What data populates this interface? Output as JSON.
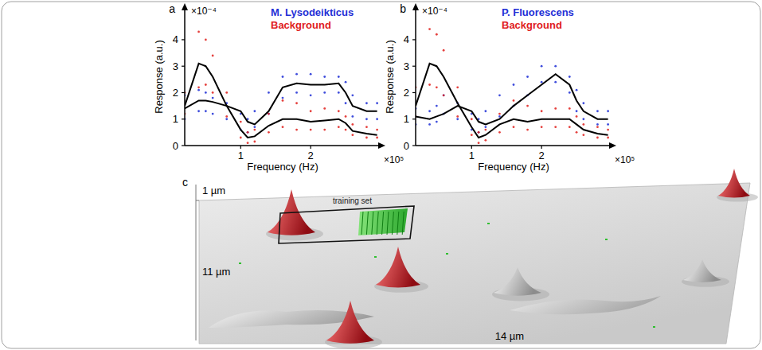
{
  "chart_data": [
    {
      "type": "scatter",
      "panel": "a",
      "x_label": "Frequency (Hz)",
      "y_label": "Response (a.u.)",
      "x_axis_factor": "×10⁵",
      "y_axis_factor": "×10⁻⁴",
      "xlim": [
        0.2,
        3.0
      ],
      "ylim": [
        0,
        5.2
      ],
      "xticks": [
        1,
        2
      ],
      "yticks": [
        0,
        1,
        2,
        3,
        4
      ],
      "grid": false,
      "legend": "upper right",
      "series": [
        {
          "name": "M. Lysodeikticus",
          "type": "scatter",
          "marker": "circle",
          "color": "#1f2fd6",
          "x": [
            0.2,
            0.4,
            0.5,
            0.6,
            0.8,
            1.0,
            1.1,
            1.2,
            1.4,
            1.6,
            1.8,
            2.0,
            2.2,
            2.4,
            2.5,
            2.6,
            2.8,
            2.95,
            0.2,
            0.4,
            0.5,
            0.6,
            0.8,
            1.0,
            1.1,
            1.2,
            1.4,
            1.6,
            1.8,
            2.0,
            2.2,
            2.4,
            2.5,
            2.6,
            2.8,
            2.95
          ],
          "values": [
            1.9,
            2.1,
            2.0,
            1.8,
            1.6,
            1.2,
            1.0,
            1.3,
            2.0,
            2.6,
            2.7,
            2.7,
            2.6,
            2.6,
            2.4,
            1.9,
            1.6,
            1.6,
            1.0,
            1.3,
            1.3,
            1.2,
            1.0,
            0.6,
            0.5,
            0.7,
            1.2,
            1.8,
            2.0,
            1.9,
            2.0,
            2.0,
            1.6,
            1.1,
            1.0,
            1.0
          ]
        },
        {
          "name": "Background",
          "type": "scatter",
          "marker": "circle",
          "color": "#e0201c",
          "x": [
            0.2,
            0.4,
            0.5,
            0.6,
            0.8,
            1.0,
            1.1,
            1.2,
            1.4,
            1.6,
            1.8,
            2.0,
            2.2,
            2.4,
            2.5,
            2.6,
            2.8,
            2.95,
            0.2,
            0.4,
            0.5,
            0.6,
            0.8,
            1.0,
            1.1,
            1.2,
            1.4,
            1.6,
            1.8,
            2.0,
            2.2,
            2.4,
            2.5,
            2.6,
            2.8,
            2.95
          ],
          "values": [
            2.0,
            4.3,
            4.0,
            3.4,
            2.0,
            0.9,
            0.5,
            0.6,
            1.2,
            1.7,
            1.6,
            1.3,
            1.4,
            1.3,
            1.1,
            0.8,
            0.7,
            0.6,
            1.2,
            2.2,
            2.3,
            2.0,
            1.1,
            0.3,
            0.1,
            0.15,
            0.5,
            0.7,
            0.6,
            0.6,
            0.6,
            0.7,
            0.6,
            0.4,
            0.3,
            0.3
          ]
        },
        {
          "type": "line",
          "line_style": "solid",
          "color": "#000000",
          "x": [
            0.2,
            0.4,
            0.5,
            0.6,
            0.8,
            1.0,
            1.1,
            1.2,
            1.4,
            1.6,
            1.8,
            2.0,
            2.2,
            2.4,
            2.5,
            2.6,
            2.8,
            2.95
          ],
          "values": [
            1.4,
            1.7,
            1.7,
            1.65,
            1.5,
            1.3,
            0.9,
            0.8,
            1.3,
            2.2,
            2.35,
            2.3,
            2.3,
            2.35,
            2.0,
            1.5,
            1.3,
            1.3
          ]
        },
        {
          "type": "line",
          "line_style": "solid",
          "color": "#000000",
          "x": [
            0.2,
            0.4,
            0.5,
            0.6,
            0.8,
            1.0,
            1.1,
            1.2,
            1.4,
            1.6,
            1.8,
            2.0,
            2.2,
            2.4,
            2.5,
            2.6,
            2.8,
            2.95
          ],
          "values": [
            1.5,
            3.1,
            3.0,
            2.6,
            1.5,
            0.6,
            0.3,
            0.35,
            0.75,
            1.0,
            1.0,
            0.9,
            0.95,
            1.0,
            0.85,
            0.55,
            0.45,
            0.4
          ]
        }
      ]
    },
    {
      "type": "scatter",
      "panel": "b",
      "x_label": "Frequency (Hz)",
      "y_label": "Response (a.u.)",
      "x_axis_factor": "×10⁵",
      "y_axis_factor": "×10⁻⁴",
      "xlim": [
        0.2,
        3.0
      ],
      "ylim": [
        0,
        5.2
      ],
      "xticks": [
        1,
        2
      ],
      "yticks": [
        0,
        1,
        2,
        3,
        4
      ],
      "grid": false,
      "legend": "upper right",
      "series": [
        {
          "name": "P. Fluorescens",
          "type": "scatter",
          "marker": "circle",
          "color": "#1f2fd6",
          "x": [
            0.2,
            0.4,
            0.5,
            0.6,
            0.8,
            1.0,
            1.1,
            1.2,
            1.4,
            1.6,
            1.8,
            2.0,
            2.2,
            2.4,
            2.5,
            2.6,
            2.8,
            2.95,
            0.2,
            0.4,
            0.5,
            0.6,
            0.8,
            1.0,
            1.1,
            1.2,
            1.4,
            1.6,
            1.8,
            2.0,
            2.2,
            2.4,
            2.5,
            2.6,
            2.8,
            2.95
          ],
          "values": [
            1.4,
            1.3,
            1.5,
            1.9,
            1.6,
            1.2,
            1.0,
            1.3,
            1.9,
            2.3,
            2.6,
            3.0,
            3.0,
            2.6,
            2.1,
            1.6,
            1.3,
            1.3,
            0.8,
            0.8,
            0.9,
            1.2,
            1.0,
            0.6,
            0.5,
            0.7,
            1.1,
            1.5,
            1.9,
            2.4,
            2.4,
            2.0,
            1.3,
            1.0,
            0.8,
            0.8
          ]
        },
        {
          "name": "Background",
          "type": "scatter",
          "marker": "circle",
          "color": "#e0201c",
          "x": [
            0.2,
            0.4,
            0.5,
            0.6,
            0.8,
            1.0,
            1.1,
            1.2,
            1.4,
            1.6,
            1.8,
            2.0,
            2.2,
            2.4,
            2.5,
            2.6,
            2.8,
            2.95,
            0.2,
            0.4,
            0.5,
            0.6,
            0.8,
            1.0,
            1.1,
            1.2,
            1.4,
            1.6,
            1.8,
            2.0,
            2.2,
            2.4,
            2.5,
            2.6,
            2.8,
            2.95
          ],
          "values": [
            2.2,
            4.4,
            4.2,
            3.6,
            2.2,
            1.0,
            0.5,
            0.6,
            1.2,
            1.7,
            1.5,
            1.3,
            1.4,
            1.4,
            1.1,
            0.8,
            0.7,
            0.6,
            1.1,
            2.3,
            2.2,
            1.9,
            1.1,
            0.4,
            0.1,
            0.2,
            0.5,
            0.7,
            0.6,
            0.7,
            0.7,
            0.7,
            0.5,
            0.4,
            0.3,
            0.3
          ]
        },
        {
          "type": "line",
          "line_style": "solid",
          "color": "#000000",
          "x": [
            0.2,
            0.4,
            0.5,
            0.6,
            0.8,
            1.0,
            1.1,
            1.2,
            1.4,
            1.6,
            1.8,
            2.0,
            2.2,
            2.4,
            2.5,
            2.6,
            2.8,
            2.95
          ],
          "values": [
            1.1,
            1.0,
            1.1,
            1.2,
            1.5,
            1.3,
            0.9,
            0.8,
            1.0,
            1.5,
            1.9,
            2.3,
            2.7,
            2.3,
            1.7,
            1.3,
            1.0,
            1.0
          ]
        },
        {
          "type": "line",
          "line_style": "solid",
          "color": "#000000",
          "x": [
            0.2,
            0.4,
            0.5,
            0.6,
            0.8,
            1.0,
            1.1,
            1.2,
            1.4,
            1.6,
            1.8,
            2.0,
            2.2,
            2.4,
            2.5,
            2.6,
            2.8,
            2.95
          ],
          "values": [
            1.5,
            3.1,
            3.0,
            2.6,
            1.6,
            0.7,
            0.3,
            0.4,
            0.8,
            1.0,
            0.9,
            1.0,
            1.0,
            1.0,
            0.8,
            0.6,
            0.45,
            0.4
          ]
        }
      ]
    }
  ],
  "surface_image": {
    "panel": "c",
    "height_label": "1 µm",
    "depth_label": "11 µm",
    "width_label": "14 µm",
    "annotation": "training set"
  }
}
